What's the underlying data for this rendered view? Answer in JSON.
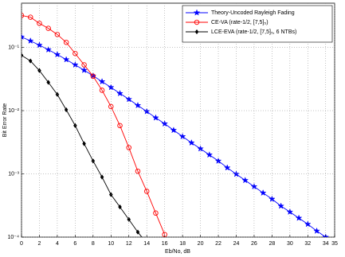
{
  "chart_data": {
    "type": "line",
    "x_label": "Eb/No, dB",
    "y_label": "Bit Error Rate",
    "log_y": true,
    "grid": true,
    "legend": "top-right",
    "xlim": [
      0,
      35
    ],
    "xticks": [
      0,
      2,
      4,
      6,
      8,
      10,
      12,
      14,
      16,
      18,
      20,
      22,
      24,
      26,
      28,
      30,
      32,
      34,
      35
    ],
    "ylim": [
      0.0001,
      0.5
    ],
    "yticks": [
      {
        "value": 0.0001,
        "label": "10⁻⁴"
      },
      {
        "value": 0.001,
        "label": "10⁻³"
      },
      {
        "value": 0.01,
        "label": "10⁻²"
      },
      {
        "value": 0.1,
        "label": "10⁻¹"
      }
    ],
    "series": [
      {
        "name": "Theory-Uncoded Rayleigh Fading",
        "color": "#0000ff",
        "marker": "star",
        "x": [
          0,
          1,
          2,
          3,
          4,
          5,
          6,
          7,
          8,
          9,
          10,
          11,
          12,
          13,
          14,
          15,
          16,
          17,
          18,
          19,
          20,
          21,
          22,
          23,
          24,
          25,
          26,
          27,
          28,
          29,
          30,
          31,
          32,
          33,
          34
        ],
        "values": [
          0.1464,
          0.1267,
          0.1085,
          0.0919,
          0.0771,
          0.0642,
          0.053,
          0.0435,
          0.0355,
          0.0288,
          0.0233,
          0.0187,
          0.0151,
          0.0121,
          0.0097,
          0.0077,
          0.0062,
          0.0049,
          0.0039,
          0.0031,
          0.0025,
          0.002,
          0.0016,
          0.00125,
          0.00099,
          0.00079,
          0.00063,
          0.0005,
          0.0004,
          0.00031,
          0.00025,
          0.0002,
          0.00016,
          0.000125,
          0.0001
        ]
      },
      {
        "name": "CE-VA (rate-1/2, [7,5]₅)",
        "color": "#ff0000",
        "marker": "circle",
        "x": [
          0,
          1,
          2,
          3,
          4,
          5,
          6,
          7,
          8,
          9,
          10,
          11,
          12,
          13,
          14,
          15,
          16
        ],
        "values": [
          0.32,
          0.3,
          0.24,
          0.2,
          0.16,
          0.12,
          0.08,
          0.053,
          0.035,
          0.021,
          0.0116,
          0.0058,
          0.0026,
          0.0011,
          0.00053,
          0.00024,
          0.00011
        ]
      },
      {
        "name": "LCE-EVA (rate-1/2, [7,5]₅, 6 NTBs)",
        "color": "#000000",
        "marker": "diamond",
        "x": [
          0,
          1,
          2,
          3,
          4,
          5,
          6,
          7,
          8,
          9,
          10,
          11,
          12,
          13,
          14
        ],
        "values": [
          0.075,
          0.061,
          0.043,
          0.028,
          0.018,
          0.0103,
          0.0058,
          0.003,
          0.0016,
          0.00089,
          0.00047,
          0.0003,
          0.00019,
          0.00012,
          8e-05
        ]
      }
    ]
  }
}
